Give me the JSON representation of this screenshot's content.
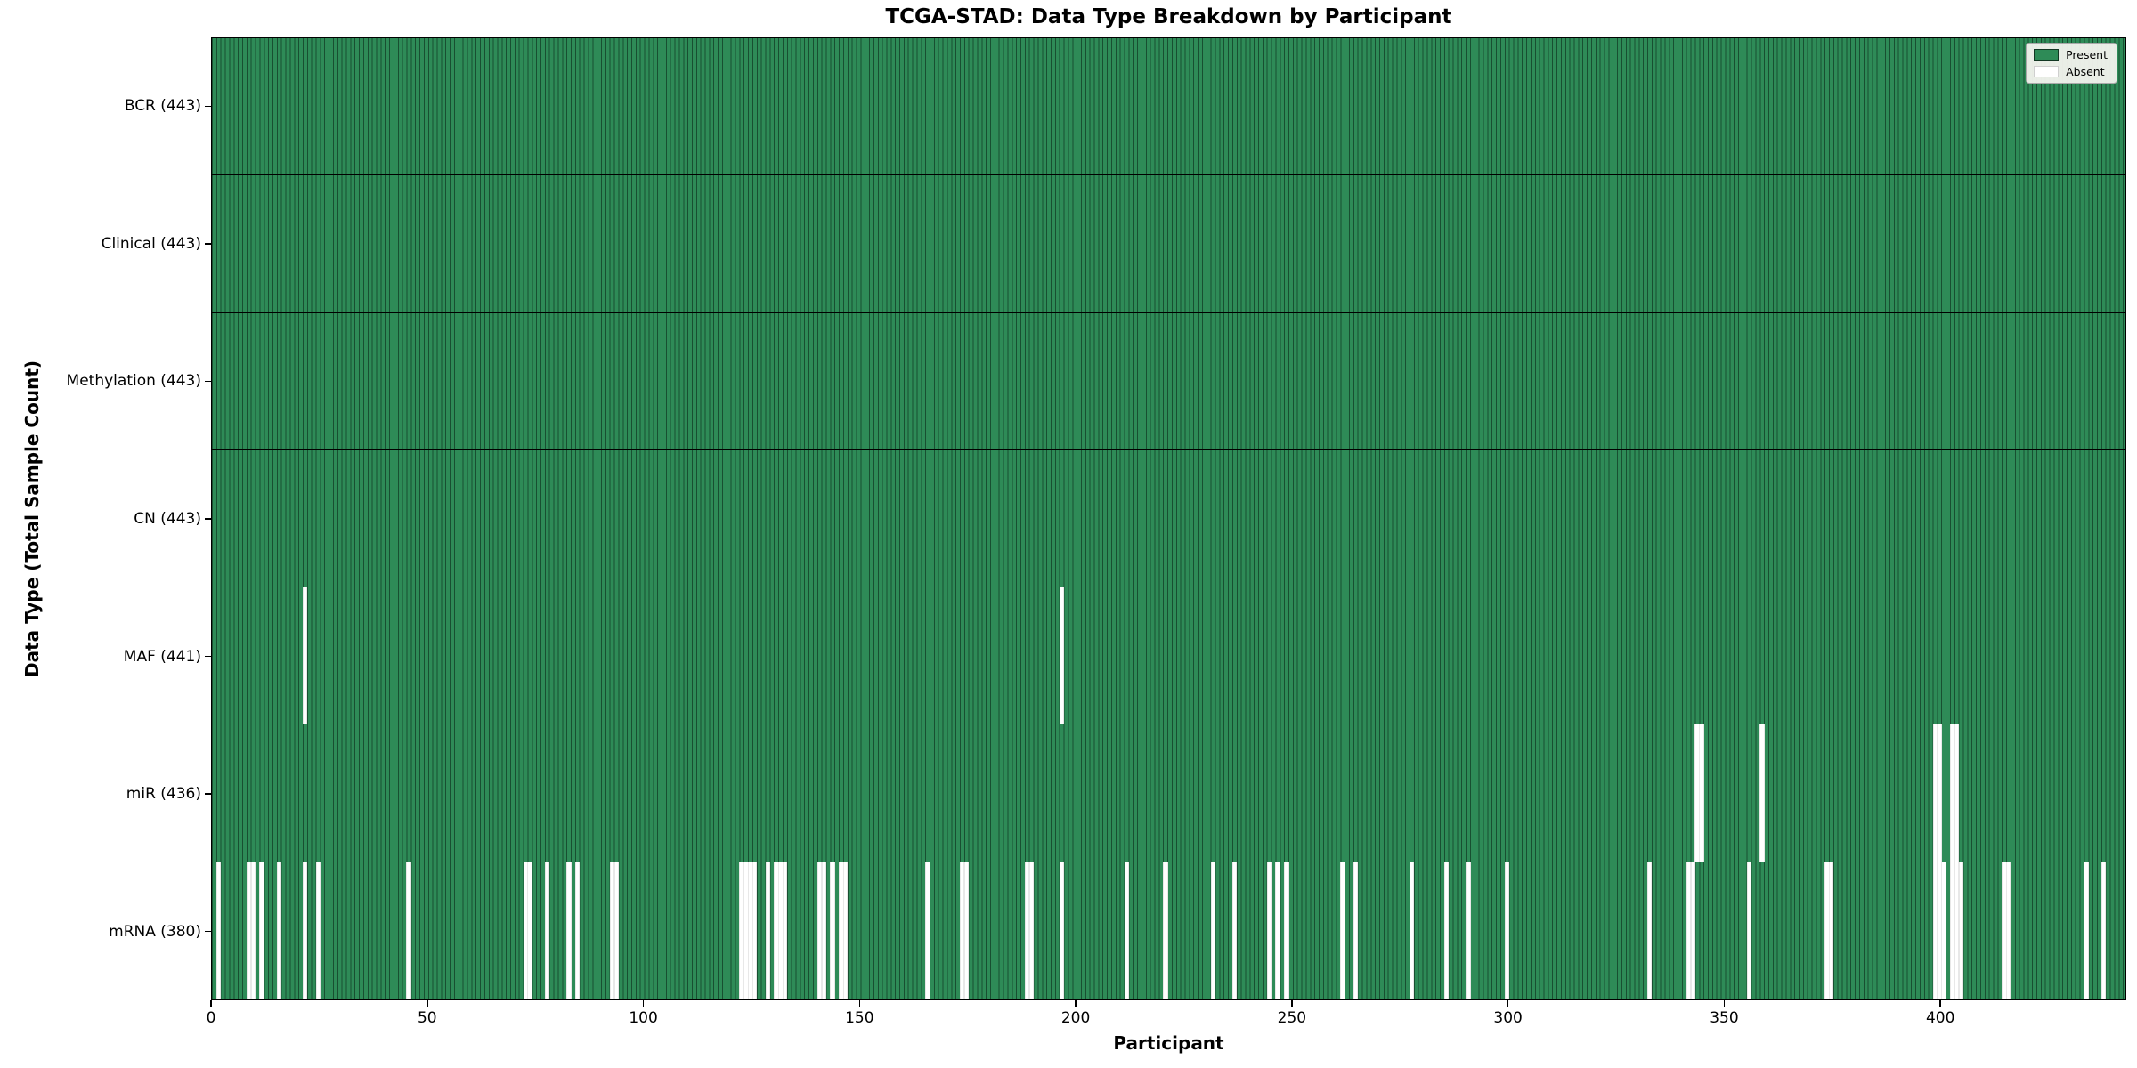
{
  "chart_data": {
    "type": "heatmap",
    "title": "TCGA-STAD: Data Type Breakdown by Participant",
    "xlabel": "Participant",
    "ylabel": "Data Type (Total Sample Count)",
    "x_range": [
      0,
      443
    ],
    "x_ticks": [
      0,
      50,
      100,
      150,
      200,
      250,
      300,
      350,
      400
    ],
    "n_participants": 443,
    "legend": {
      "position": "upper right",
      "present_label": "Present",
      "absent_label": "Absent"
    },
    "colors": {
      "present": "#2e8b57",
      "absent": "#ffffff",
      "bar_edge": "rgba(5,30,18,0.55)",
      "axis": "#000000",
      "legend_bg": "#f3f3ee"
    },
    "rows": [
      {
        "name": "BCR",
        "label": "BCR (443)",
        "total": 443,
        "absent": []
      },
      {
        "name": "Clinical",
        "label": "Clinical (443)",
        "total": 443,
        "absent": []
      },
      {
        "name": "Methylation",
        "label": "Methylation (443)",
        "total": 443,
        "absent": []
      },
      {
        "name": "CN",
        "label": "CN (443)",
        "total": 443,
        "absent": []
      },
      {
        "name": "MAF",
        "label": "MAF (441)",
        "total": 441,
        "absent": [
          21,
          196
        ]
      },
      {
        "name": "miR",
        "label": "miR (436)",
        "total": 436,
        "absent": [
          343,
          344,
          358,
          398,
          399,
          402,
          403
        ]
      },
      {
        "name": "mRNA",
        "label": "mRNA (380)",
        "total": 380,
        "absent": [
          1,
          8,
          9,
          11,
          15,
          21,
          24,
          45,
          72,
          73,
          77,
          82,
          84,
          92,
          93,
          122,
          123,
          124,
          125,
          128,
          130,
          131,
          132,
          140,
          141,
          143,
          145,
          146,
          165,
          173,
          174,
          188,
          189,
          196,
          211,
          220,
          231,
          236,
          244,
          246,
          248,
          261,
          264,
          277,
          285,
          290,
          299,
          332,
          341,
          342,
          355,
          373,
          374,
          398,
          399,
          400,
          402,
          403,
          404,
          414,
          415,
          433,
          437
        ]
      }
    ]
  }
}
